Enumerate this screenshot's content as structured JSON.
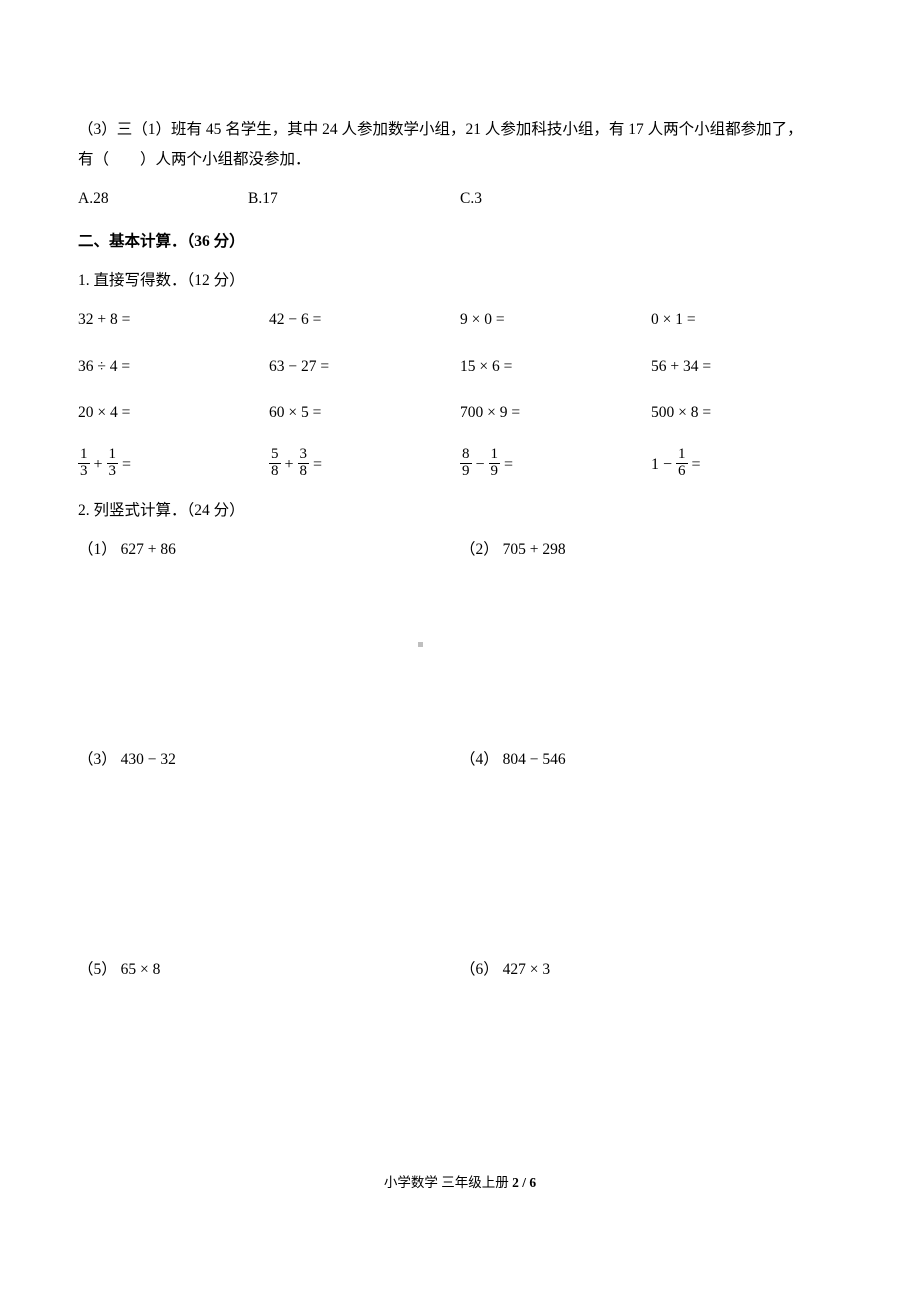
{
  "q3": {
    "line1": "（3）三（1）班有 45 名学生，其中 24 人参加数学小组，21 人参加科技小组，有 17 人两个小组都参加了，",
    "line2": "有（　　）人两个小组都没参加．",
    "optionA": "A.28",
    "optionB": "B.17",
    "optionC": "C.3"
  },
  "section2": {
    "title": "二、基本计算．（36 分）",
    "sub1": {
      "title": "1. 直接写得数．（12 分）",
      "rows": [
        {
          "c1": "32 + 8 =",
          "c2": "42 − 6 =",
          "c3": "9 × 0 =",
          "c4": "0 × 1 ="
        },
        {
          "c1": "36 ÷ 4 =",
          "c2": "63 − 27 =",
          "c3": "15 × 6 =",
          "c4": "56 + 34 ="
        },
        {
          "c1": "20 × 4 =",
          "c2": "60 × 5 =",
          "c3": "700 × 9 =",
          "c4": "500 × 8 ="
        }
      ],
      "fracRow": {
        "c1": {
          "a_num": "1",
          "a_den": "3",
          "op": "+",
          "b_num": "1",
          "b_den": "3"
        },
        "c2": {
          "a_num": "5",
          "a_den": "8",
          "op": "+",
          "b_num": "3",
          "b_den": "8"
        },
        "c3": {
          "a_num": "8",
          "a_den": "9",
          "op": "−",
          "b_num": "1",
          "b_den": "9"
        },
        "c4": {
          "lead": "1",
          "op": "−",
          "b_num": "1",
          "b_den": "6"
        }
      }
    },
    "sub2": {
      "title": "2. 列竖式计算．（24 分）",
      "items": [
        {
          "label": "（1）",
          "expr": "627 + 86"
        },
        {
          "label": "（2）",
          "expr": "705 + 298"
        },
        {
          "label": "（3）",
          "expr": "430 − 32"
        },
        {
          "label": "（4）",
          "expr": "804 − 546"
        },
        {
          "label": "（5）",
          "expr": "65 × 8"
        },
        {
          "label": "（6）",
          "expr": "427 × 3"
        }
      ]
    }
  },
  "footer": {
    "text": "小学数学 三年级上册 ",
    "page": "2 / 6"
  }
}
